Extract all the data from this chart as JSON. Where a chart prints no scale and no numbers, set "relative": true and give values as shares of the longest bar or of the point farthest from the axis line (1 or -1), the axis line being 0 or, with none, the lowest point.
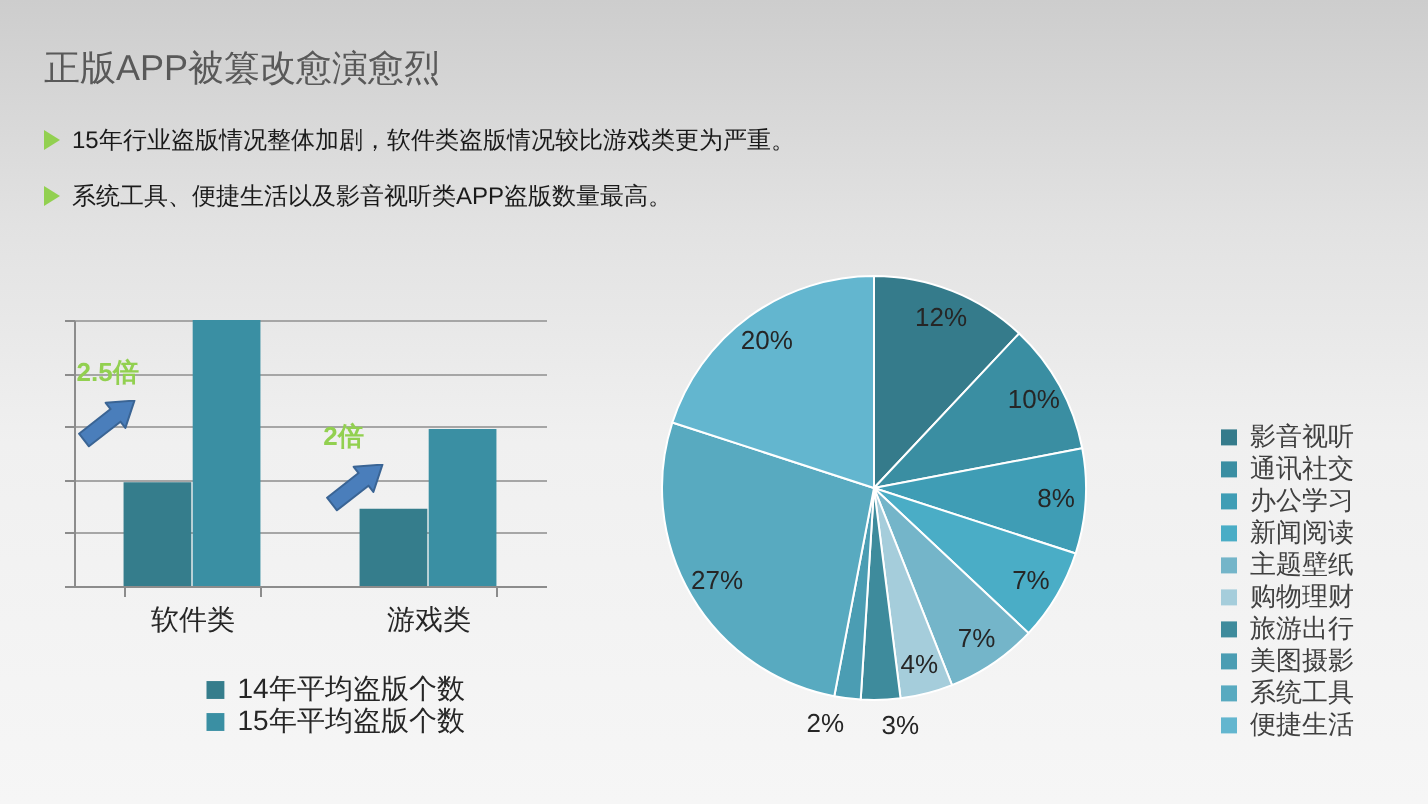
{
  "chart_data": [
    {
      "type": "bar",
      "title": "正版APP被篡改愈演愈烈",
      "subtitle": "15年行业盗版情况整体加剧，软件类盗版情况较比游戏类更为严重。",
      "categories": [
        "软件类",
        "游戏类"
      ],
      "series": [
        {
          "name": "14年平均盗版个数",
          "color": "#357d8c",
          "values": [
            0.39,
            0.29
          ]
        },
        {
          "name": "15年平均盗版个数",
          "color": "#3a8fa3",
          "values": [
            1,
            0.59
          ]
        }
      ],
      "relative": true,
      "grid": "y",
      "legend": "bottom",
      "annotations": [
        {
          "text": "2.5倍",
          "x": "软件类",
          "y": 0.8
        },
        {
          "text": "2倍",
          "x": "游戏类",
          "y": 0.56
        }
      ]
    },
    {
      "type": "pie",
      "subtitle": "系统工具、便捷生活以及影音视听类APP盗版数量最高。",
      "categories": [
        "影音视听",
        "通讯社交",
        "办公学习",
        "新闻阅读",
        "主题壁纸",
        "购物理财",
        "旅游出行",
        "美图摄影",
        "系统工具",
        "便捷生活"
      ],
      "values": [
        12,
        10,
        8,
        7,
        7,
        4,
        3,
        2,
        27,
        20
      ],
      "value_labels": [
        "12%",
        "10%",
        "8%",
        "7%",
        "7%",
        "4%",
        "3%",
        "2%",
        "27%",
        "20%"
      ],
      "colors": [
        "#357b8b",
        "#3a8ea2",
        "#3f9db5",
        "#4aadc6",
        "#74b5c9",
        "#a5cddb",
        "#3e8b9c",
        "#4b9db3",
        "#58aac0",
        "#63b6cf"
      ],
      "legend": "right"
    }
  ]
}
